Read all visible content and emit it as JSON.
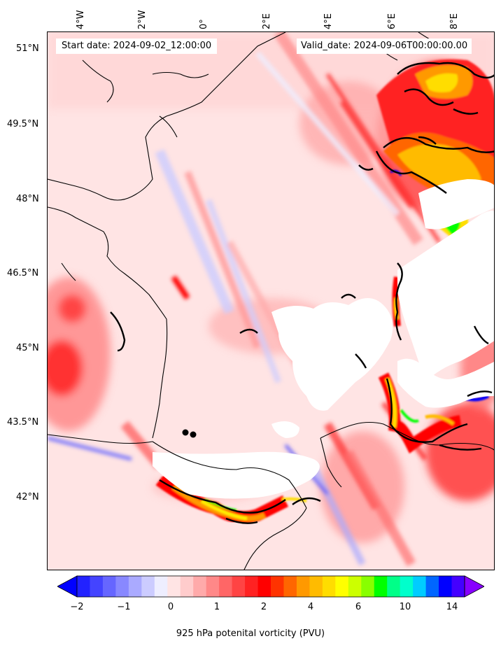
{
  "header": {
    "start_date": "Start date: 2024-09-02_12:00:00",
    "valid_date": "Valid_date: 2024-09-06T00:00:00.00"
  },
  "axes": {
    "lon_labels": [
      "4°W",
      "2°W",
      "0°",
      "2°E",
      "4°E",
      "6°E",
      "8°E"
    ],
    "lat_labels": [
      "51°N",
      "49.5°N",
      "48°N",
      "46.5°N",
      "45°N",
      "43.5°N",
      "42°N"
    ]
  },
  "colorbar": {
    "label": "925 hPa potenital vorticity (PVU)",
    "tick_labels": [
      "−2",
      "−1",
      "0",
      "1",
      "2",
      "4",
      "6",
      "10",
      "14"
    ],
    "extend": "both",
    "colors": [
      "#0000ff",
      "#2222ff",
      "#4444ff",
      "#6666ff",
      "#8888ff",
      "#aaaaff",
      "#ccccff",
      "#eeeeff",
      "#ffe4e4",
      "#ffcccc",
      "#ffaaaa",
      "#ff8888",
      "#ff6666",
      "#ff4444",
      "#ff2222",
      "#ff0000",
      "#ff3300",
      "#ff6600",
      "#ff9900",
      "#ffbb00",
      "#ffdd00",
      "#ffff00",
      "#ccff00",
      "#88ff00",
      "#00ff00",
      "#00ff88",
      "#00ffcc",
      "#00ccff",
      "#0066ff",
      "#0000ff",
      "#4400ff",
      "#8800ff"
    ]
  },
  "markers": {
    "description_color": "#000000"
  }
}
